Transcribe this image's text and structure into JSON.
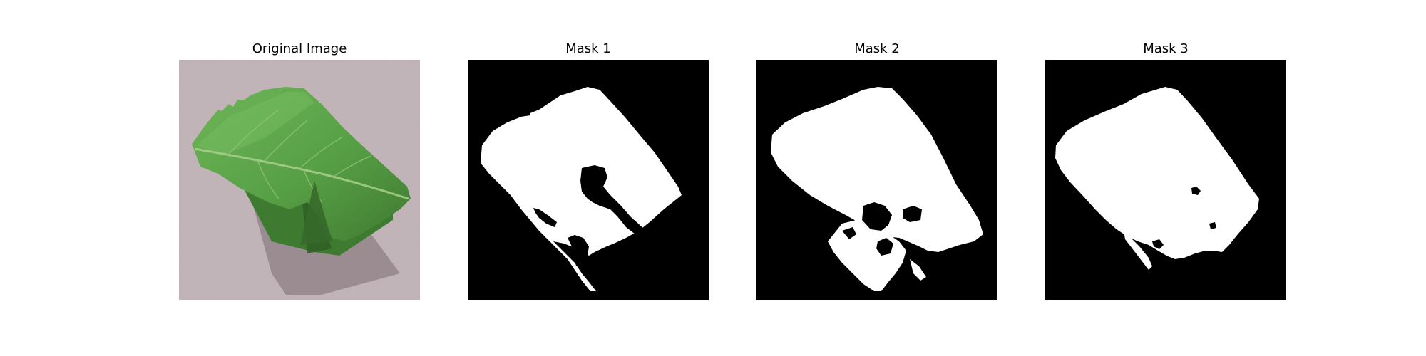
{
  "figure": {
    "panels": [
      {
        "title": "Original Image"
      },
      {
        "title": "Mask 1"
      },
      {
        "title": "Mask 2"
      },
      {
        "title": "Mask 3"
      }
    ]
  },
  "colors": {
    "background": "#c2b4b8",
    "leaf_dark": "#3f7a31",
    "leaf_mid": "#579f45",
    "leaf_light": "#6fb659",
    "vein": "#a8cf8c",
    "shadow": "#8c7f83",
    "mask_background": "#000000",
    "mask_foreground": "#ffffff"
  }
}
